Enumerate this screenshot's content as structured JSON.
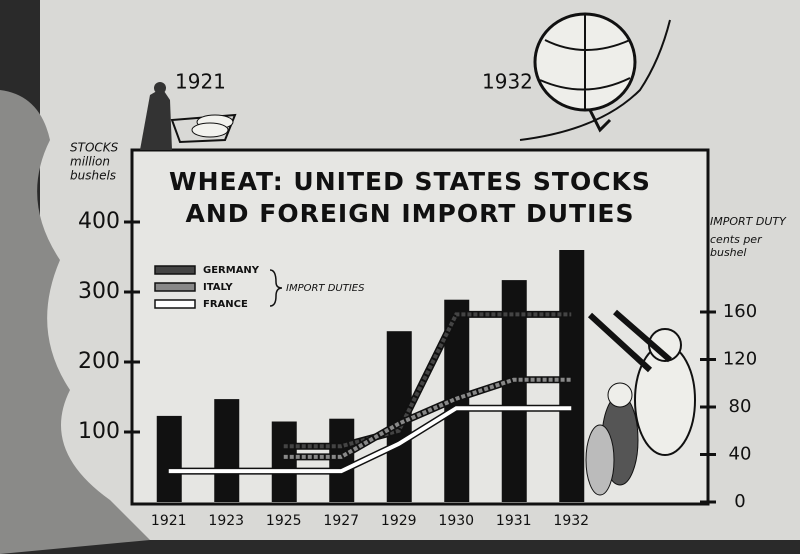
{
  "chart_data": {
    "type": "bar",
    "title": "WHEAT: UNITED STATES STOCKS AND FOREIGN IMPORT DUTIES",
    "ylabel": [
      "STOCKS",
      "million",
      "bushels"
    ],
    "y2label": [
      "IMPORT DUTY",
      "cents per",
      "bushel"
    ],
    "annotations": [
      "IMPORT DUTIES",
      "1921",
      "1932"
    ],
    "categories": [
      "1921",
      "1923",
      "1925",
      "1927",
      "1929",
      "1930",
      "1931",
      "1932"
    ],
    "values": [
      123,
      147,
      115,
      119,
      244,
      289,
      317,
      360
    ],
    "color": "#111111",
    "ylim": [
      0,
      400
    ],
    "yticks": [
      100,
      200,
      300,
      400
    ],
    "y2lim": [
      0,
      240
    ],
    "y2ticks": [
      0,
      40,
      80,
      120,
      160
    ],
    "series": [
      {
        "name": "GERMANY",
        "color": "#444444",
        "axis": "y2",
        "type": "line",
        "values": [
          null,
          null,
          47,
          47,
          60,
          158,
          158,
          158
        ]
      },
      {
        "name": "ITALY",
        "color": "#888888",
        "axis": "y2",
        "type": "line",
        "values": [
          null,
          null,
          38,
          38,
          66,
          87,
          103,
          103
        ]
      },
      {
        "name": "FRANCE",
        "color": "#ffffff",
        "axis": "y2",
        "type": "line",
        "values": [
          26,
          26,
          26,
          26,
          49,
          79,
          79,
          79
        ]
      }
    ]
  }
}
